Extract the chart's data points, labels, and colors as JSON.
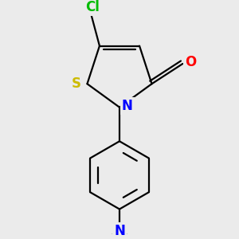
{
  "background_color": "#ebebeb",
  "bond_color": "#000000",
  "bond_width": 1.6,
  "atom_colors": {
    "Cl": "#00bb00",
    "S": "#ccbb00",
    "N": "#0000ff",
    "O": "#ff0000",
    "C": "#000000"
  },
  "font_size": 12,
  "figsize": [
    3.0,
    3.0
  ],
  "dpi": 100
}
